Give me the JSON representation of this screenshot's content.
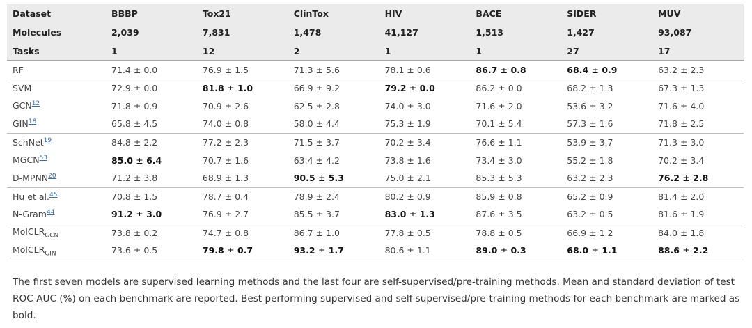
{
  "header": {
    "rows": [
      {
        "label": "Dataset",
        "cells": [
          "BBBP",
          "Tox21",
          "ClinTox",
          "HIV",
          "BACE",
          "SIDER",
          "MUV"
        ]
      },
      {
        "label": "Molecules",
        "cells": [
          "2,039",
          "7,831",
          "1,478",
          "41,127",
          "1,513",
          "1,427",
          "93,087"
        ]
      },
      {
        "label": "Tasks",
        "cells": [
          "1",
          "12",
          "2",
          "1",
          "1",
          "27",
          "17"
        ]
      }
    ]
  },
  "rows": [
    {
      "model": "RF",
      "ref": "",
      "sub": "",
      "group_end": true,
      "cells": [
        {
          "mean": "71.4",
          "std": "0.0"
        },
        {
          "mean": "76.9",
          "std": "1.5"
        },
        {
          "mean": "71.3",
          "std": "5.6"
        },
        {
          "mean": "78.1",
          "std": "0.6"
        },
        {
          "mean": "86.7",
          "std": "0.8",
          "bold": true
        },
        {
          "mean": "68.4",
          "std": "0.9",
          "bold": true
        },
        {
          "mean": "63.2",
          "std": "2.3"
        }
      ]
    },
    {
      "model": "SVM",
      "ref": "",
      "sub": "",
      "group_end": false,
      "cells": [
        {
          "mean": "72.9",
          "std": "0.0"
        },
        {
          "mean": "81.8",
          "std": "1.0",
          "bold": true
        },
        {
          "mean": "66.9",
          "std": "9.2"
        },
        {
          "mean": "79.2",
          "std": "0.0",
          "bold": true
        },
        {
          "mean": "86.2",
          "std": "0.0"
        },
        {
          "mean": "68.2",
          "std": "1.3"
        },
        {
          "mean": "67.3",
          "std": "1.3"
        }
      ]
    },
    {
      "model": "GCN",
      "ref": "12",
      "sub": "",
      "group_end": false,
      "cells": [
        {
          "mean": "71.8",
          "std": "0.9"
        },
        {
          "mean": "70.9",
          "std": "2.6"
        },
        {
          "mean": "62.5",
          "std": "2.8"
        },
        {
          "mean": "74.0",
          "std": "3.0"
        },
        {
          "mean": "71.6",
          "std": "2.0"
        },
        {
          "mean": "53.6",
          "std": "3.2"
        },
        {
          "mean": "71.6",
          "std": "4.0"
        }
      ]
    },
    {
      "model": "GIN",
      "ref": "18",
      "sub": "",
      "group_end": true,
      "cells": [
        {
          "mean": "65.8",
          "std": "4.5"
        },
        {
          "mean": "74.0",
          "std": "0.8"
        },
        {
          "mean": "58.0",
          "std": "4.4"
        },
        {
          "mean": "75.3",
          "std": "1.9"
        },
        {
          "mean": "70.1",
          "std": "5.4"
        },
        {
          "mean": "57.3",
          "std": "1.6"
        },
        {
          "mean": "71.8",
          "std": "2.5"
        }
      ]
    },
    {
      "model": "SchNet",
      "ref": "19",
      "sub": "",
      "group_end": false,
      "cells": [
        {
          "mean": "84.8",
          "std": "2.2"
        },
        {
          "mean": "77.2",
          "std": "2.3"
        },
        {
          "mean": "71.5",
          "std": "3.7"
        },
        {
          "mean": "70.2",
          "std": "3.4"
        },
        {
          "mean": "76.6",
          "std": "1.1"
        },
        {
          "mean": "53.9",
          "std": "3.7"
        },
        {
          "mean": "71.3",
          "std": "3.0"
        }
      ]
    },
    {
      "model": "MGCN",
      "ref": "53",
      "sub": "",
      "group_end": false,
      "cells": [
        {
          "mean": "85.0",
          "std": "6.4",
          "bold": true
        },
        {
          "mean": "70.7",
          "std": "1.6"
        },
        {
          "mean": "63.4",
          "std": "4.2"
        },
        {
          "mean": "73.8",
          "std": "1.6"
        },
        {
          "mean": "73.4",
          "std": "3.0"
        },
        {
          "mean": "55.2",
          "std": "1.8"
        },
        {
          "mean": "70.2",
          "std": "3.4"
        }
      ]
    },
    {
      "model": "D-MPNN",
      "ref": "20",
      "sub": "",
      "group_end": true,
      "cells": [
        {
          "mean": "71.2",
          "std": "3.8"
        },
        {
          "mean": "68.9",
          "std": "1.3"
        },
        {
          "mean": "90.5",
          "std": "5.3",
          "bold": true
        },
        {
          "mean": "75.0",
          "std": "2.1"
        },
        {
          "mean": "85.3",
          "std": "5.3"
        },
        {
          "mean": "63.2",
          "std": "2.3"
        },
        {
          "mean": "76.2",
          "std": "2.8",
          "bold": true
        }
      ]
    },
    {
      "model": "Hu et al.",
      "ref": "45",
      "sub": "",
      "group_end": false,
      "cells": [
        {
          "mean": "70.8",
          "std": "1.5"
        },
        {
          "mean": "78.7",
          "std": "0.4"
        },
        {
          "mean": "78.9",
          "std": "2.4"
        },
        {
          "mean": "80.2",
          "std": "0.9"
        },
        {
          "mean": "85.9",
          "std": "0.8"
        },
        {
          "mean": "65.2",
          "std": "0.9"
        },
        {
          "mean": "81.4",
          "std": "2.0"
        }
      ]
    },
    {
      "model": "N-Gram",
      "ref": "44",
      "sub": "",
      "group_end": true,
      "cells": [
        {
          "mean": "91.2",
          "std": "3.0",
          "bold": true
        },
        {
          "mean": "76.9",
          "std": "2.7"
        },
        {
          "mean": "85.5",
          "std": "3.7"
        },
        {
          "mean": "83.0",
          "std": "1.3",
          "bold": true
        },
        {
          "mean": "87.6",
          "std": "3.5"
        },
        {
          "mean": "63.2",
          "std": "0.5"
        },
        {
          "mean": "81.6",
          "std": "1.9"
        }
      ]
    },
    {
      "model": "MolCLR",
      "ref": "",
      "sub": "GCN",
      "group_end": false,
      "cells": [
        {
          "mean": "73.8",
          "std": "0.2"
        },
        {
          "mean": "74.7",
          "std": "0.8"
        },
        {
          "mean": "86.7",
          "std": "1.0"
        },
        {
          "mean": "77.8",
          "std": "0.5"
        },
        {
          "mean": "78.8",
          "std": "0.5"
        },
        {
          "mean": "66.9",
          "std": "1.2"
        },
        {
          "mean": "84.0",
          "std": "1.8"
        }
      ]
    },
    {
      "model": "MolCLR",
      "ref": "",
      "sub": "GIN",
      "group_end": true,
      "cells": [
        {
          "mean": "73.6",
          "std": "0.5"
        },
        {
          "mean": "79.8",
          "std": "0.7",
          "bold": true
        },
        {
          "mean": "93.2",
          "std": "1.7",
          "bold": true
        },
        {
          "mean": "80.6",
          "std": "1.1"
        },
        {
          "mean": "89.0",
          "std": "0.3",
          "bold": true
        },
        {
          "mean": "68.0",
          "std": "1.1",
          "bold": true
        },
        {
          "mean": "88.6",
          "std": "2.2",
          "bold": true
        }
      ]
    }
  ],
  "pm_symbol": "±",
  "caption": "The first seven models are supervised learning methods and the last four are self-supervised/pre-training methods. Mean and standard deviation of test ROC-AUC (%) on each benchmark are reported. Best performing supervised and self-supervised/pre-training methods for each benchmark are marked as bold."
}
